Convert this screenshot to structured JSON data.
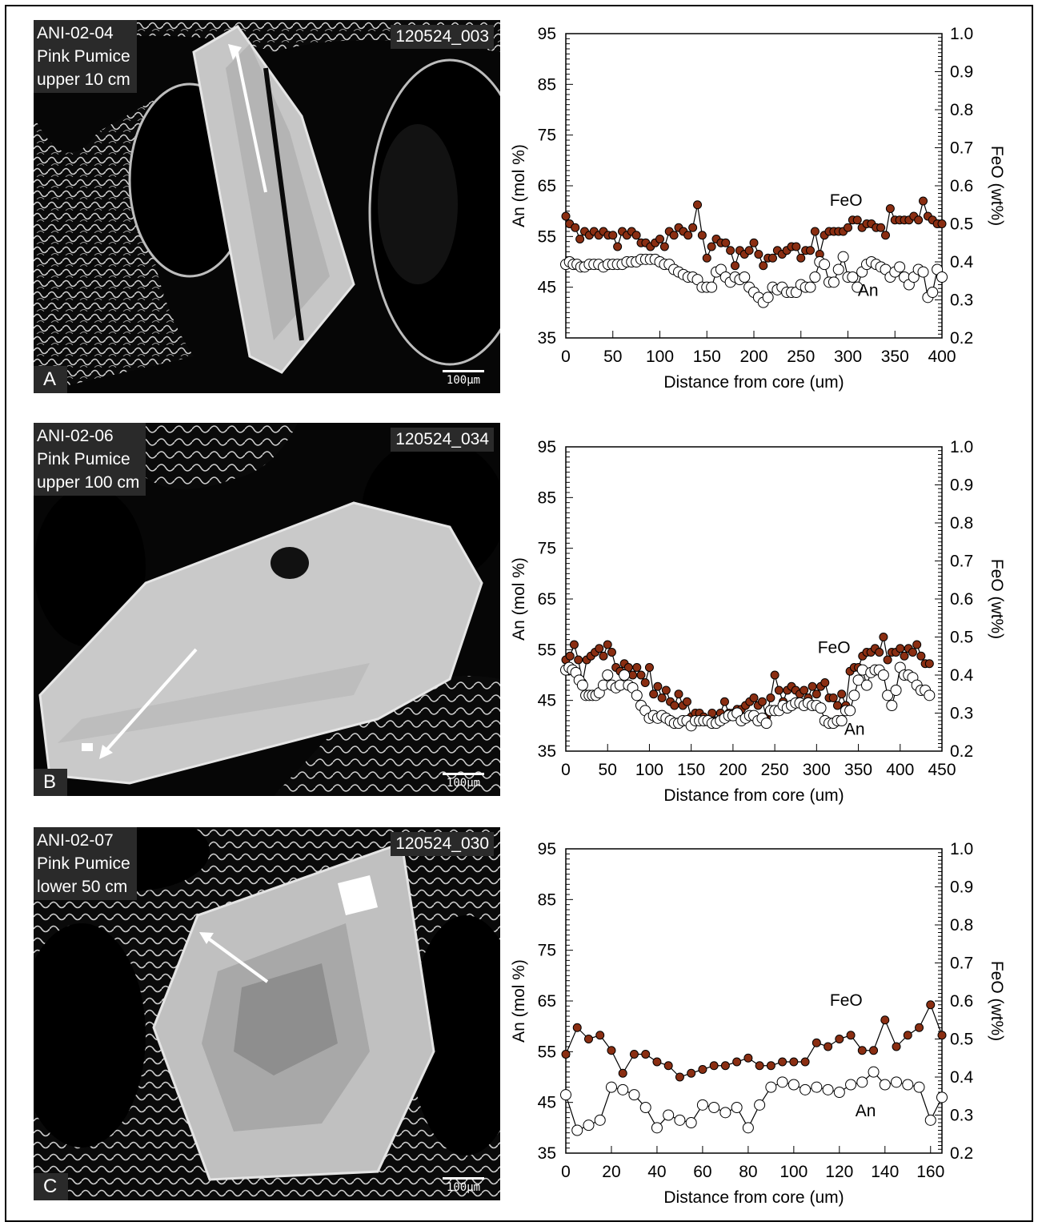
{
  "panels": [
    {
      "sample": "ANI-02-04",
      "rock": "Pink Pumice",
      "depth": "upper 10 cm",
      "image_id": "120524_003",
      "label": "A",
      "scale": "100μm"
    },
    {
      "sample": "ANI-02-06",
      "rock": "Pink Pumice",
      "depth": "upper 100 cm",
      "image_id": "120524_034",
      "label": "B",
      "scale": "100μm"
    },
    {
      "sample": "ANI-02-07",
      "rock": "Pink Pumice",
      "depth": "lower 50 cm",
      "image_id": "120524_030",
      "label": "C",
      "scale": "100μm"
    }
  ],
  "colors": {
    "feo": "#8a2e12",
    "an_fill": "#ffffff",
    "line": "#000000"
  },
  "chart_data": [
    {
      "type": "scatter",
      "xlabel": "Distance from core (um)",
      "ylabel": "An (mol %)",
      "y2label": "FeO (wt%)",
      "xlim": [
        0,
        400
      ],
      "xticks": [
        0,
        50,
        100,
        150,
        200,
        250,
        300,
        350,
        400
      ],
      "ylim": [
        35,
        95
      ],
      "yticks": [
        35,
        45,
        55,
        65,
        75,
        85,
        95
      ],
      "y2lim": [
        0.2,
        1.0
      ],
      "y2ticks": [
        "0.2",
        "0.3",
        "0.4",
        "0.5",
        "0.6",
        "0.7",
        "0.8",
        "0.9",
        "1.0"
      ],
      "series": [
        {
          "name": "FeO",
          "axis": "right",
          "x": [
            0,
            4,
            10,
            15,
            20,
            25,
            30,
            35,
            40,
            45,
            50,
            55,
            60,
            65,
            70,
            75,
            80,
            85,
            90,
            95,
            100,
            105,
            110,
            115,
            120,
            125,
            130,
            135,
            140,
            145,
            150,
            155,
            160,
            165,
            170,
            175,
            180,
            185,
            190,
            195,
            200,
            205,
            210,
            215,
            220,
            225,
            230,
            235,
            240,
            245,
            250,
            255,
            260,
            265,
            270,
            275,
            280,
            285,
            290,
            295,
            300,
            305,
            310,
            315,
            320,
            325,
            330,
            335,
            340,
            345,
            350,
            355,
            360,
            365,
            370,
            375,
            380,
            385,
            390,
            395,
            400
          ],
          "values": [
            0.52,
            0.5,
            0.49,
            0.46,
            0.48,
            0.47,
            0.48,
            0.47,
            0.48,
            0.47,
            0.47,
            0.44,
            0.48,
            0.47,
            0.48,
            0.47,
            0.45,
            0.45,
            0.44,
            0.45,
            0.46,
            0.44,
            0.48,
            0.47,
            0.49,
            0.48,
            0.47,
            0.49,
            0.55,
            0.47,
            0.41,
            0.44,
            0.46,
            0.45,
            0.45,
            0.43,
            0.39,
            0.43,
            0.42,
            0.43,
            0.45,
            0.42,
            0.39,
            0.41,
            0.41,
            0.43,
            0.42,
            0.43,
            0.44,
            0.44,
            0.41,
            0.43,
            0.43,
            0.48,
            0.42,
            0.47,
            0.48,
            0.48,
            0.48,
            0.48,
            0.49,
            0.51,
            0.51,
            0.49,
            0.5,
            0.5,
            0.49,
            0.49,
            0.47,
            0.54,
            0.51,
            0.51,
            0.51,
            0.51,
            0.52,
            0.51,
            0.56,
            0.52,
            0.51,
            0.5,
            0.5
          ]
        },
        {
          "name": "An",
          "axis": "left",
          "x": [
            0,
            4,
            8,
            12,
            16,
            20,
            25,
            30,
            35,
            40,
            45,
            50,
            55,
            60,
            65,
            70,
            75,
            80,
            85,
            90,
            95,
            100,
            105,
            110,
            115,
            120,
            125,
            130,
            135,
            140,
            145,
            150,
            155,
            160,
            165,
            170,
            175,
            180,
            185,
            190,
            195,
            200,
            205,
            210,
            215,
            220,
            225,
            230,
            235,
            240,
            245,
            250,
            255,
            260,
            265,
            270,
            275,
            280,
            285,
            290,
            295,
            300,
            305,
            310,
            315,
            320,
            325,
            330,
            335,
            340,
            345,
            350,
            355,
            360,
            365,
            370,
            375,
            380,
            385,
            390,
            395,
            400
          ],
          "values": [
            49.5,
            50,
            49.5,
            49.5,
            49,
            49,
            49.5,
            49.5,
            49.5,
            49,
            49.5,
            49.5,
            49.5,
            49.5,
            50,
            50,
            50,
            50.5,
            50.5,
            50.5,
            50.5,
            50,
            49.5,
            49.5,
            48.5,
            48,
            47.5,
            47,
            47,
            46.5,
            45,
            45,
            45,
            48,
            48.5,
            47,
            46,
            47,
            46.5,
            47,
            45,
            44,
            43,
            42,
            43,
            45,
            44.5,
            45,
            44,
            44,
            44,
            45.5,
            45,
            45,
            47,
            50,
            49.5,
            46,
            46,
            48.5,
            51,
            47,
            47,
            45,
            48,
            49.5,
            50,
            49.5,
            49,
            48.5,
            47,
            48,
            49,
            47,
            45.5,
            47,
            48.5,
            48,
            43,
            44,
            48.5,
            47
          ]
        }
      ]
    },
    {
      "type": "scatter",
      "xlabel": "Distance from core (um)",
      "ylabel": "An (mol %)",
      "y2label": "FeO (wt%)",
      "xlim": [
        0,
        450
      ],
      "xticks": [
        0,
        50,
        100,
        150,
        200,
        250,
        300,
        350,
        400,
        450
      ],
      "ylim": [
        35,
        95
      ],
      "yticks": [
        35,
        45,
        55,
        65,
        75,
        85,
        95
      ],
      "y2lim": [
        0.2,
        1.0
      ],
      "y2ticks": [
        "0.2",
        "0.3",
        "0.4",
        "0.5",
        "0.6",
        "0.7",
        "0.8",
        "0.9",
        "1.0"
      ],
      "series": [
        {
          "name": "FeO",
          "axis": "right",
          "x": [
            0,
            5,
            10,
            15,
            20,
            25,
            30,
            35,
            40,
            45,
            50,
            55,
            60,
            65,
            70,
            75,
            80,
            85,
            90,
            95,
            100,
            105,
            110,
            115,
            120,
            125,
            130,
            135,
            140,
            145,
            150,
            155,
            160,
            165,
            170,
            175,
            180,
            185,
            190,
            195,
            200,
            205,
            210,
            215,
            220,
            225,
            230,
            235,
            240,
            245,
            250,
            255,
            260,
            265,
            270,
            275,
            280,
            285,
            290,
            295,
            300,
            305,
            310,
            315,
            320,
            325,
            330,
            335,
            340,
            345,
            350,
            355,
            360,
            365,
            370,
            375,
            380,
            385,
            390,
            395,
            400,
            405,
            410,
            415,
            420,
            425,
            430,
            435
          ],
          "values": [
            0.44,
            0.45,
            0.48,
            0.44,
            0.38,
            0.44,
            0.45,
            0.46,
            0.47,
            0.45,
            0.48,
            0.46,
            0.42,
            0.41,
            0.43,
            0.42,
            0.4,
            0.42,
            0.4,
            0.38,
            0.42,
            0.35,
            0.37,
            0.34,
            0.36,
            0.33,
            0.32,
            0.35,
            0.32,
            0.33,
            0.29,
            0.3,
            0.3,
            0.29,
            0.28,
            0.3,
            0.28,
            0.3,
            0.33,
            0.3,
            0.3,
            0.31,
            0.31,
            0.32,
            0.33,
            0.34,
            0.32,
            0.33,
            0.29,
            0.34,
            0.4,
            0.36,
            0.33,
            0.36,
            0.37,
            0.36,
            0.35,
            0.36,
            0.34,
            0.37,
            0.35,
            0.37,
            0.38,
            0.34,
            0.34,
            0.32,
            0.35,
            0.32,
            0.41,
            0.42,
            0.42,
            0.45,
            0.46,
            0.46,
            0.47,
            0.46,
            0.5,
            0.44,
            0.46,
            0.46,
            0.47,
            0.45,
            0.47,
            0.46,
            0.48,
            0.45,
            0.43,
            0.43
          ]
        },
        {
          "name": "An",
          "axis": "left",
          "x": [
            0,
            4,
            8,
            12,
            16,
            20,
            24,
            28,
            32,
            36,
            40,
            45,
            50,
            55,
            60,
            65,
            70,
            75,
            80,
            85,
            90,
            95,
            100,
            105,
            110,
            115,
            120,
            125,
            130,
            135,
            140,
            145,
            150,
            155,
            160,
            165,
            170,
            175,
            180,
            185,
            190,
            195,
            200,
            205,
            210,
            215,
            220,
            225,
            230,
            235,
            240,
            245,
            250,
            255,
            260,
            265,
            270,
            275,
            280,
            285,
            290,
            295,
            300,
            305,
            310,
            315,
            320,
            325,
            330,
            335,
            340,
            345,
            350,
            355,
            360,
            365,
            370,
            375,
            380,
            385,
            390,
            395,
            400,
            405,
            410,
            415,
            420,
            425,
            430,
            435
          ],
          "values": [
            51,
            51.5,
            51,
            50.5,
            49,
            48,
            46,
            46,
            46,
            46,
            46.5,
            48,
            50,
            48,
            47.5,
            48,
            50,
            48,
            47.5,
            46,
            44,
            43,
            41.5,
            42,
            41.5,
            42,
            41.5,
            41,
            40.5,
            40.5,
            41,
            41,
            40,
            41,
            41,
            41,
            41,
            40.5,
            40.5,
            41,
            41.5,
            42,
            42,
            42.5,
            41,
            41.5,
            42,
            42,
            41,
            41.5,
            40.5,
            43,
            43,
            43,
            44,
            43.5,
            44,
            44.5,
            44.5,
            44,
            44.5,
            44,
            44,
            43.5,
            41,
            40.5,
            40.5,
            41,
            41,
            43,
            43,
            46,
            49,
            51,
            48,
            50.5,
            51,
            51,
            50,
            46,
            44,
            47,
            51.5,
            50,
            50,
            49.5,
            48,
            47,
            47,
            46
          ]
        }
      ]
    },
    {
      "type": "scatter",
      "xlabel": "Distance from core (um)",
      "ylabel": "An (mol %)",
      "y2label": "FeO (wt%)",
      "xlim": [
        0,
        165
      ],
      "xticks": [
        0,
        20,
        40,
        60,
        80,
        100,
        120,
        140,
        160
      ],
      "ylim": [
        35,
        95
      ],
      "yticks": [
        35,
        45,
        55,
        65,
        75,
        85,
        95
      ],
      "y2lim": [
        0.2,
        1.0
      ],
      "y2ticks": [
        "0.2",
        "0.3",
        "0.4",
        "0.5",
        "0.6",
        "0.7",
        "0.8",
        "0.9",
        "1.0"
      ],
      "series": [
        {
          "name": "FeO",
          "axis": "right",
          "x": [
            0,
            5,
            10,
            15,
            20,
            25,
            30,
            35,
            40,
            45,
            50,
            55,
            60,
            65,
            70,
            75,
            80,
            85,
            90,
            95,
            100,
            105,
            110,
            115,
            120,
            125,
            130,
            135,
            140,
            145,
            150,
            155,
            160,
            165
          ],
          "values": [
            0.46,
            0.53,
            0.5,
            0.51,
            0.47,
            0.41,
            0.46,
            0.46,
            0.44,
            0.43,
            0.4,
            0.41,
            0.42,
            0.43,
            0.43,
            0.44,
            0.45,
            0.43,
            0.43,
            0.44,
            0.44,
            0.44,
            0.49,
            0.48,
            0.5,
            0.51,
            0.47,
            0.47,
            0.55,
            0.48,
            0.51,
            0.53,
            0.59,
            0.51
          ]
        },
        {
          "name": "An",
          "axis": "left",
          "x": [
            0,
            5,
            10,
            15,
            20,
            25,
            30,
            35,
            40,
            45,
            50,
            55,
            60,
            65,
            70,
            75,
            80,
            85,
            90,
            95,
            100,
            105,
            110,
            115,
            120,
            125,
            130,
            135,
            140,
            145,
            150,
            155,
            160,
            165
          ],
          "values": [
            46.5,
            39.5,
            40.5,
            41.5,
            48,
            47.5,
            46.5,
            44,
            40,
            42.5,
            41.5,
            41,
            44.5,
            44,
            43,
            44,
            40,
            44.5,
            48,
            49,
            48.5,
            47.5,
            48,
            47.5,
            47,
            48.5,
            49,
            51,
            48.5,
            49,
            48.5,
            48,
            41.5,
            46
          ]
        }
      ]
    }
  ]
}
